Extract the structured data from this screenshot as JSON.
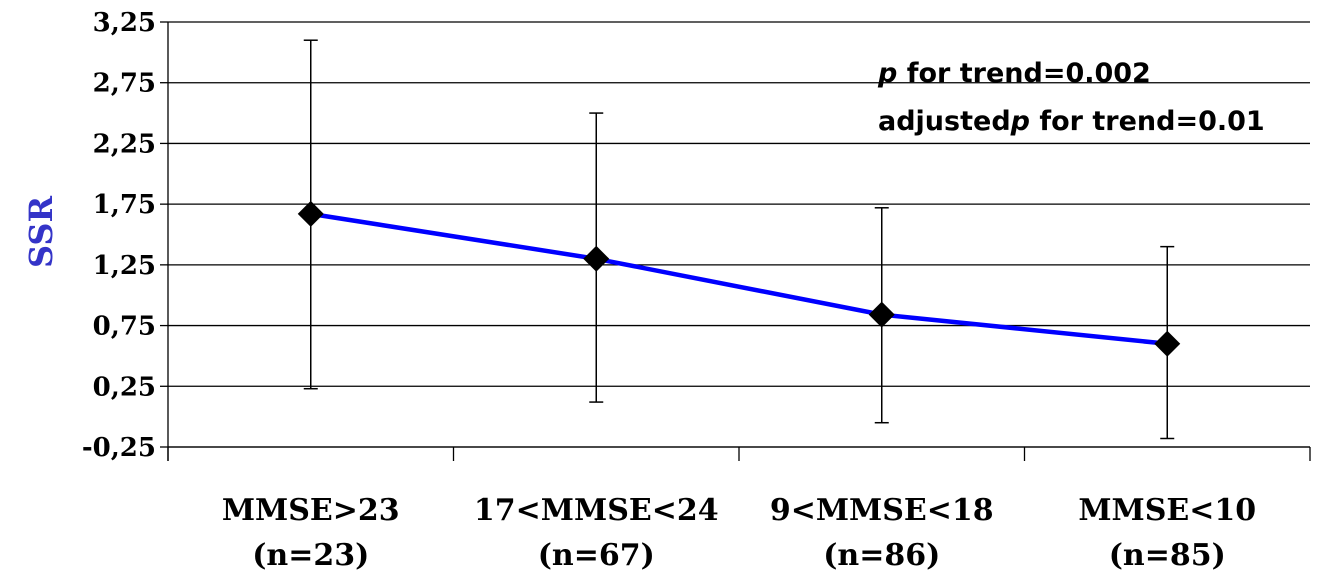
{
  "chart_data": {
    "type": "line",
    "categories": [
      {
        "line1": "MMSE>23",
        "line2": "(n=23)"
      },
      {
        "line1": "17<MMSE<24",
        "line2": "(n=67)"
      },
      {
        "line1": "9<MMSE<18",
        "line2": "(n=86)"
      },
      {
        "line1": "MMSE<10",
        "line2": "(n=85)"
      }
    ],
    "series": [
      {
        "values": [
          1.67,
          1.3,
          0.84,
          0.6
        ],
        "error_upper": [
          3.1,
          2.5,
          1.72,
          1.4
        ],
        "error_lower": [
          0.23,
          0.12,
          -0.05,
          -0.18
        ],
        "color": "#0000ff",
        "marker": "diamond"
      }
    ],
    "ylabel": "SSR",
    "ylim": [
      -0.25,
      3.25
    ],
    "yticks": [
      "3,25",
      "2,75",
      "2,25",
      "1,75",
      "1,25",
      "0,75",
      "0,25",
      "-0,25"
    ],
    "ytick_values": [
      3.25,
      2.75,
      2.25,
      1.75,
      1.25,
      0.75,
      0.25,
      -0.25
    ],
    "grid": "horizontal",
    "annotations": [
      {
        "p_italic": "p",
        "text": " for trend=0.002"
      },
      {
        "prefix": "adjusted",
        "p_italic": "p",
        "text": " for trend=0.01"
      }
    ],
    "ylabel_color": "#3434c8",
    "line_color": "#0000ff"
  }
}
